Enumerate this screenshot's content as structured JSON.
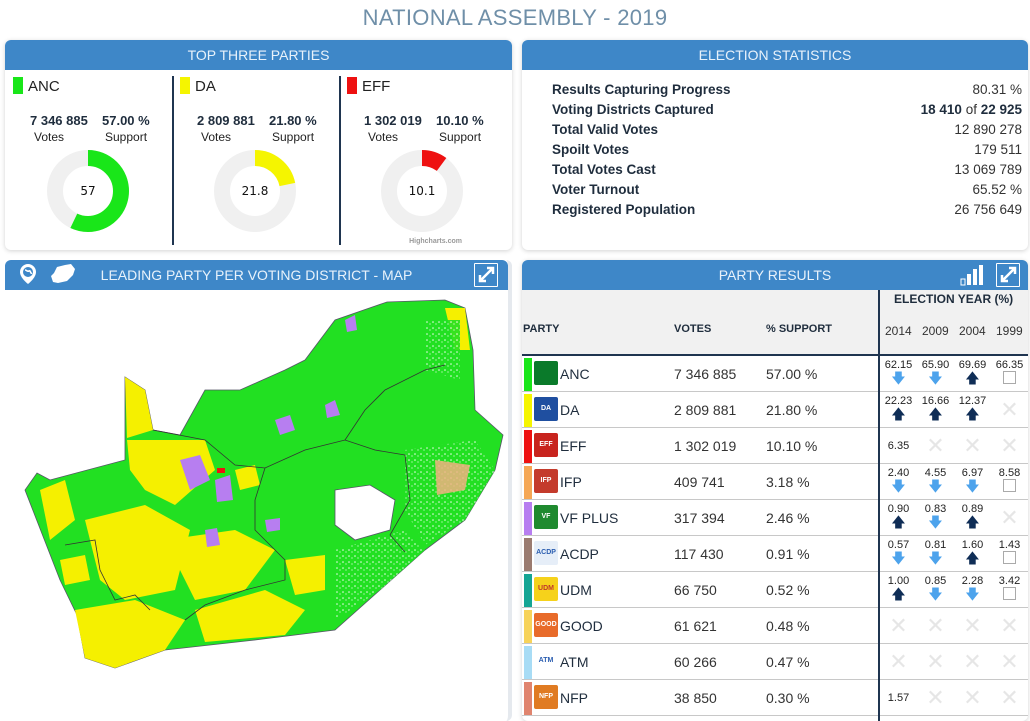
{
  "title": "NATIONAL ASSEMBLY - 2019",
  "top_three": {
    "header": "TOP THREE PARTIES",
    "credit": "Highcharts.com",
    "parties": [
      {
        "name": "ANC",
        "color": "#19e619",
        "votes": "7 346 885",
        "support": "57.00 %",
        "votes_label": "Votes",
        "support_label": "Support",
        "donut_value": 57,
        "donut_label": "57"
      },
      {
        "name": "DA",
        "color": "#f5f500",
        "votes": "2 809 881",
        "support": "21.80 %",
        "votes_label": "Votes",
        "support_label": "Support",
        "donut_value": 21.8,
        "donut_label": "21.8"
      },
      {
        "name": "EFF",
        "color": "#ee1111",
        "votes": "1 302 019",
        "support": "10.10 %",
        "votes_label": "Votes",
        "support_label": "Support",
        "donut_value": 10.1,
        "donut_label": "10.1"
      }
    ]
  },
  "stats": {
    "header": "ELECTION STATISTICS",
    "rows": [
      {
        "label": "Results Capturing Progress",
        "value": "80.31 %"
      },
      {
        "label": "Voting Districts Captured",
        "captured": "18 410",
        "of": "of",
        "total": "22 925"
      },
      {
        "label": "Total Valid Votes",
        "value": "12 890 278"
      },
      {
        "label": "Spoilt Votes",
        "value": "179 511"
      },
      {
        "label": "Total Votes Cast",
        "value": "13 069 789"
      },
      {
        "label": "Voter Turnout",
        "value": "65.52 %"
      },
      {
        "label": "Registered Population",
        "value": "26 756 649"
      }
    ]
  },
  "map": {
    "header": "LEADING PARTY PER VOTING DISTRICT - MAP",
    "icons": [
      "globe-pin-icon",
      "south-africa-icon",
      "expand-icon"
    ]
  },
  "results": {
    "header": "PARTY RESULTS",
    "col_party": "PARTY",
    "col_votes": "VOTES",
    "col_support": "% SUPPORT",
    "col_years_title": "ELECTION YEAR (%)",
    "years": [
      "2014",
      "2009",
      "2004",
      "1999"
    ],
    "rows": [
      {
        "name": "ANC",
        "color": "#19e619",
        "logo_bg": "#0a7a2a",
        "logo": "",
        "votes": "7 346 885",
        "support": "57.00 %",
        "history": [
          {
            "v": "62.15",
            "t": "down"
          },
          {
            "v": "65.90",
            "t": "down"
          },
          {
            "v": "69.69",
            "t": "up"
          },
          {
            "v": "66.35",
            "t": "none"
          }
        ]
      },
      {
        "name": "DA",
        "color": "#f5f500",
        "logo_bg": "#1f4fa0",
        "logo": "DA",
        "votes": "2 809 881",
        "support": "21.80 %",
        "history": [
          {
            "v": "22.23",
            "t": "up"
          },
          {
            "v": "16.66",
            "t": "up"
          },
          {
            "v": "12.37",
            "t": "up"
          },
          {
            "v": "",
            "t": "x"
          }
        ]
      },
      {
        "name": "EFF",
        "color": "#ee1111",
        "logo_bg": "#c8241e",
        "logo": "EFF",
        "votes": "1 302 019",
        "support": "10.10 %",
        "history": [
          {
            "v": "6.35",
            "t": "only"
          },
          {
            "v": "",
            "t": "x"
          },
          {
            "v": "",
            "t": "x"
          },
          {
            "v": "",
            "t": "x"
          }
        ]
      },
      {
        "name": "IFP",
        "color": "#f5a755",
        "logo_bg": "#c43b2c",
        "logo": "IFP",
        "votes": "409 741",
        "support": "3.18 %",
        "history": [
          {
            "v": "2.40",
            "t": "down"
          },
          {
            "v": "4.55",
            "t": "down"
          },
          {
            "v": "6.97",
            "t": "down"
          },
          {
            "v": "8.58",
            "t": "none"
          }
        ]
      },
      {
        "name": "VF PLUS",
        "color": "#b77ef0",
        "logo_bg": "#1f8a2f",
        "logo": "VF",
        "votes": "317 394",
        "support": "2.46 %",
        "history": [
          {
            "v": "0.90",
            "t": "up"
          },
          {
            "v": "0.83",
            "t": "down"
          },
          {
            "v": "0.89",
            "t": "up"
          },
          {
            "v": "",
            "t": "x"
          }
        ]
      },
      {
        "name": "ACDP",
        "color": "#9a7b70",
        "logo_bg": "#e6eef8",
        "logo": "ACDP",
        "votes": "117 430",
        "support": "0.91 %",
        "history": [
          {
            "v": "0.57",
            "t": "down"
          },
          {
            "v": "0.81",
            "t": "down"
          },
          {
            "v": "1.60",
            "t": "up"
          },
          {
            "v": "1.43",
            "t": "none"
          }
        ]
      },
      {
        "name": "UDM",
        "color": "#15a594",
        "logo_bg": "#f6d21b",
        "logo": "UDM",
        "votes": "66 750",
        "support": "0.52 %",
        "history": [
          {
            "v": "1.00",
            "t": "up"
          },
          {
            "v": "0.85",
            "t": "down"
          },
          {
            "v": "2.28",
            "t": "down"
          },
          {
            "v": "3.42",
            "t": "none"
          }
        ]
      },
      {
        "name": "GOOD",
        "color": "#f7d35a",
        "logo_bg": "#e86b2a",
        "logo": "GOOD",
        "votes": "61 621",
        "support": "0.48 %",
        "history": [
          {
            "v": "",
            "t": "x"
          },
          {
            "v": "",
            "t": "x"
          },
          {
            "v": "",
            "t": "x"
          },
          {
            "v": "",
            "t": "x"
          }
        ]
      },
      {
        "name": "ATM",
        "color": "#a8dcf5",
        "logo_bg": "#ffffff",
        "logo": "ATM",
        "votes": "60 266",
        "support": "0.47 %",
        "history": [
          {
            "v": "",
            "t": "x"
          },
          {
            "v": "",
            "t": "x"
          },
          {
            "v": "",
            "t": "x"
          },
          {
            "v": "",
            "t": "x"
          }
        ]
      },
      {
        "name": "NFP",
        "color": "#e0846e",
        "logo_bg": "#e07b22",
        "logo": "NFP",
        "votes": "38 850",
        "support": "0.30 %",
        "history": [
          {
            "v": "1.57",
            "t": "only"
          },
          {
            "v": "",
            "t": "x"
          },
          {
            "v": "",
            "t": "x"
          },
          {
            "v": "",
            "t": "x"
          }
        ]
      }
    ]
  }
}
